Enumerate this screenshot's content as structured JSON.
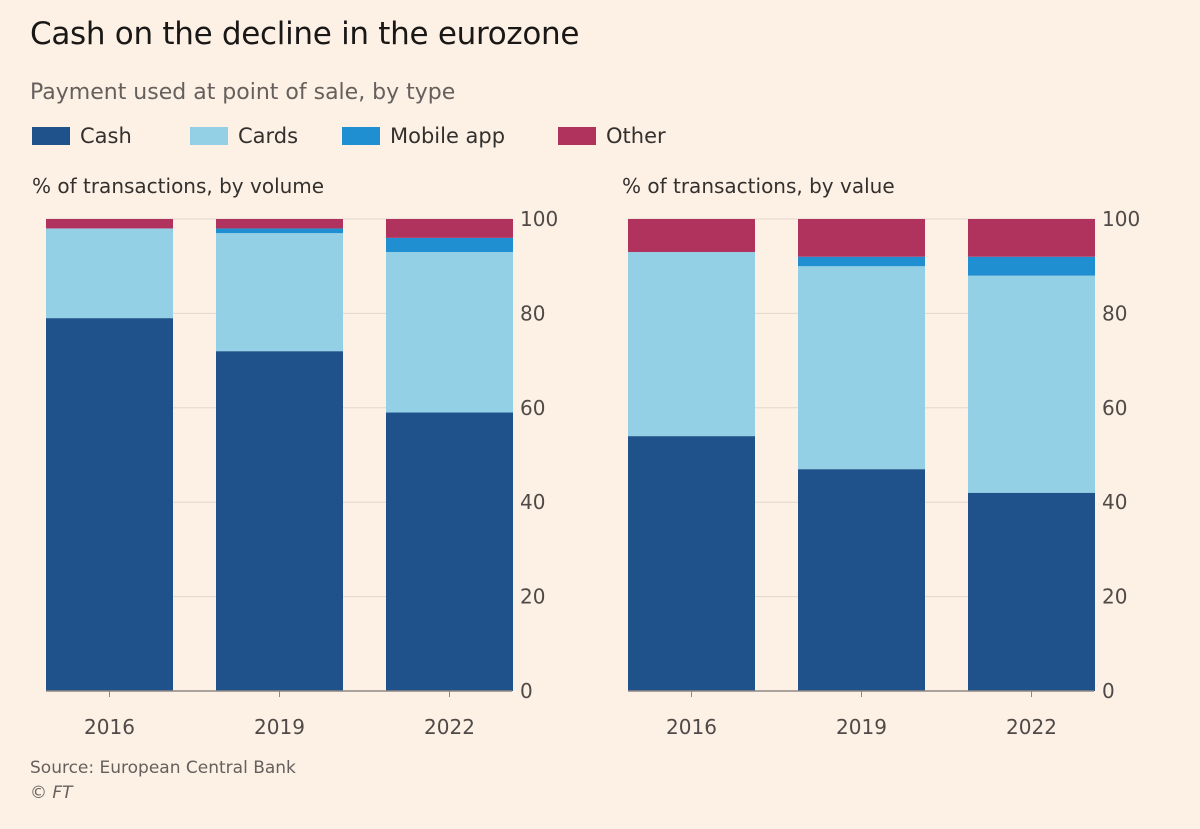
{
  "title": "Cash on the decline in the eurozone",
  "subtitle": "Payment used at point of sale, by type",
  "legend": [
    {
      "label": "Cash",
      "color": "#1f528a"
    },
    {
      "label": "Cards",
      "color": "#93d0e6"
    },
    {
      "label": "Mobile app",
      "color": "#1f8fd1"
    },
    {
      "label": "Other",
      "color": "#b0335e"
    }
  ],
  "source": "Source: European Central Bank",
  "copyright": "© FT",
  "chart_data": [
    {
      "type": "bar",
      "stacked": true,
      "title": "% of transactions, by volume",
      "categories": [
        "2016",
        "2019",
        "2022"
      ],
      "series": [
        {
          "name": "Cash",
          "values": [
            79,
            72,
            59
          ]
        },
        {
          "name": "Cards",
          "values": [
            19,
            25,
            34
          ]
        },
        {
          "name": "Mobile app",
          "values": [
            0,
            1,
            3
          ]
        },
        {
          "name": "Other",
          "values": [
            2,
            2,
            4
          ]
        }
      ],
      "ylim": [
        0,
        100
      ],
      "yticks": [
        0,
        20,
        40,
        60,
        80,
        100
      ],
      "grid": true
    },
    {
      "type": "bar",
      "stacked": true,
      "title": "% of transactions, by value",
      "categories": [
        "2016",
        "2019",
        "2022"
      ],
      "series": [
        {
          "name": "Cash",
          "values": [
            54,
            47,
            42
          ]
        },
        {
          "name": "Cards",
          "values": [
            39,
            43,
            46
          ]
        },
        {
          "name": "Mobile app",
          "values": [
            0,
            2,
            4
          ]
        },
        {
          "name": "Other",
          "values": [
            7,
            8,
            8
          ]
        }
      ],
      "ylim": [
        0,
        100
      ],
      "yticks": [
        0,
        20,
        40,
        60,
        80,
        100
      ],
      "grid": true
    }
  ]
}
